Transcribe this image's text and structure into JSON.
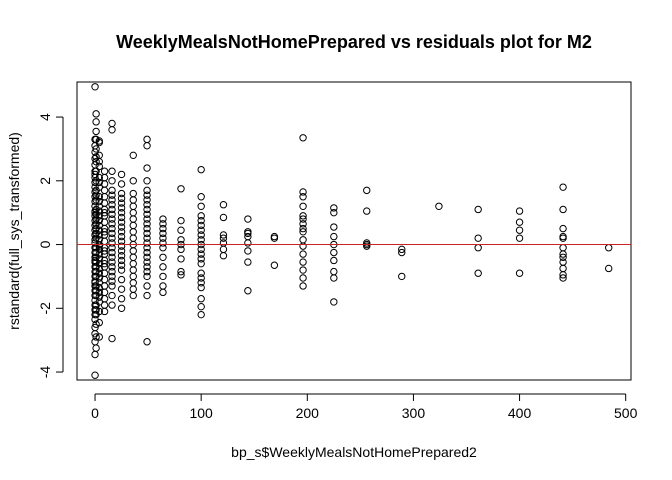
{
  "chart_data": {
    "type": "scatter",
    "title": "WeeklyMealsNotHomePrepared vs residuals plot for M2",
    "xlabel": "bp_s$WeeklyMealsNotHomePrepared2",
    "ylabel": "rstandard(full_sys_transformed)",
    "xlim": [
      -17,
      505
    ],
    "ylim": [
      -4.25,
      5.1
    ],
    "xticks": [
      0,
      100,
      200,
      300,
      400,
      500
    ],
    "yticks": [
      -4,
      -2,
      0,
      2,
      4
    ],
    "hline": {
      "y": 0,
      "color": "#cc2222"
    },
    "grid": false,
    "legend": "none",
    "series": [
      {
        "x": [
          0,
          0,
          0,
          0,
          0,
          0,
          0,
          0,
          0,
          0,
          0,
          0,
          0,
          0,
          0,
          0,
          0,
          0,
          0,
          0,
          0,
          0,
          0,
          0,
          0,
          0,
          0,
          0,
          0,
          0,
          0,
          0,
          0,
          0,
          0,
          0,
          0,
          0,
          0,
          0,
          0,
          0,
          0,
          0,
          0,
          0,
          0,
          0,
          1,
          1,
          1,
          1,
          1,
          1,
          1,
          1,
          1,
          1,
          1,
          1,
          1,
          1,
          1,
          1,
          1,
          1,
          1,
          1,
          1,
          1,
          1,
          1,
          1,
          1,
          1,
          1,
          1,
          1,
          1,
          1,
          1,
          1,
          1,
          4,
          4,
          4,
          4,
          4,
          4,
          4,
          4,
          4,
          4,
          4,
          4,
          4,
          4,
          4,
          4,
          4,
          4,
          4,
          4,
          4,
          4,
          4,
          4,
          4,
          4,
          4,
          4,
          4,
          4,
          4,
          4,
          4,
          4,
          4,
          9,
          9,
          9,
          9,
          9,
          9,
          9,
          9,
          9,
          9,
          9,
          9,
          9,
          9,
          9,
          9,
          9,
          9,
          9,
          9,
          9,
          9,
          9,
          9,
          9,
          9,
          9,
          16,
          16,
          16,
          16,
          16,
          16,
          16,
          16,
          16,
          16,
          16,
          16,
          16,
          16,
          16,
          16,
          16,
          16,
          16,
          16,
          16,
          16,
          16,
          16,
          16,
          16,
          16,
          16,
          25,
          25,
          25,
          25,
          25,
          25,
          25,
          25,
          25,
          25,
          25,
          25,
          25,
          25,
          25,
          25,
          25,
          25,
          25,
          25,
          25,
          25,
          25,
          36,
          36,
          36,
          36,
          36,
          36,
          36,
          36,
          36,
          36,
          36,
          36,
          36,
          36,
          36,
          36,
          36,
          36,
          36,
          49,
          49,
          49,
          49,
          49,
          49,
          49,
          49,
          49,
          49,
          49,
          49,
          49,
          49,
          49,
          49,
          49,
          49,
          49,
          49,
          49,
          49,
          49,
          49,
          49,
          49,
          64,
          64,
          64,
          64,
          64,
          64,
          64,
          64,
          64,
          64,
          64,
          64,
          81,
          81,
          81,
          81,
          81,
          81,
          81,
          81,
          81,
          100,
          100,
          100,
          100,
          100,
          100,
          100,
          100,
          100,
          100,
          100,
          100,
          100,
          100,
          100,
          100,
          100,
          100,
          100,
          100,
          100,
          121,
          121,
          121,
          121,
          121,
          121,
          121,
          144,
          144,
          144,
          144,
          144,
          144,
          144,
          144,
          169,
          169,
          169,
          196,
          196,
          196,
          196,
          196,
          196,
          196,
          196,
          196,
          196,
          196,
          196,
          196,
          196,
          196,
          196,
          225,
          225,
          225,
          225,
          225,
          225,
          225,
          225,
          225,
          225,
          256,
          256,
          256,
          256,
          256,
          289,
          289,
          289,
          324,
          361,
          361,
          361,
          361,
          400,
          400,
          400,
          400,
          400,
          441,
          441,
          441,
          441,
          441,
          441,
          441,
          441,
          441,
          441,
          441,
          441,
          484,
          484
        ],
        "y": [
          4.95,
          3.3,
          3.1,
          2.9,
          2.7,
          2.5,
          2.3,
          2.1,
          1.95,
          1.8,
          1.65,
          1.5,
          1.35,
          1.2,
          1.05,
          0.9,
          0.75,
          0.6,
          0.45,
          0.3,
          0.15,
          0.05,
          -0.1,
          -0.25,
          -0.4,
          -0.55,
          -0.7,
          -0.85,
          -1.0,
          -1.15,
          -1.3,
          -1.45,
          -1.6,
          -1.75,
          -1.9,
          -2.05,
          -2.2,
          -2.35,
          -2.6,
          -2.8,
          -3.05,
          -3.45,
          -4.1,
          1.0,
          0.3,
          -0.5,
          -1.2,
          2.2,
          4.1,
          3.85,
          3.3,
          3.0,
          2.6,
          2.3,
          2.0,
          1.7,
          1.4,
          1.1,
          0.8,
          0.5,
          0.2,
          -0.1,
          -0.4,
          -0.7,
          -1.0,
          -1.3,
          -1.6,
          -1.9,
          -2.2,
          -2.5,
          -2.9,
          -3.25,
          1.55,
          0.95,
          0.35,
          -0.25,
          -0.85,
          -1.45,
          -2.05,
          -0.55,
          2.75,
          3.55,
          0.65,
          3.25,
          2.8,
          2.45,
          2.1,
          1.8,
          1.5,
          1.2,
          0.9,
          0.6,
          0.3,
          0.0,
          -0.3,
          -0.6,
          -0.9,
          -1.2,
          -1.5,
          -1.8,
          -2.1,
          -2.45,
          -2.9,
          1.95,
          1.35,
          0.75,
          0.15,
          -0.45,
          -1.05,
          -1.65,
          0.45,
          -0.15,
          2.6,
          -1.35,
          1.05,
          -0.75,
          3.2,
          -0.05,
          2.3,
          1.9,
          1.5,
          1.1,
          0.7,
          0.3,
          -0.1,
          -0.5,
          -0.9,
          -1.3,
          -1.7,
          -2.1,
          1.7,
          1.3,
          0.9,
          0.5,
          0.1,
          -0.3,
          -0.7,
          -1.1,
          -1.5,
          -1.9,
          2.1,
          -0.2,
          0.4,
          -0.6,
          1.0,
          3.8,
          3.6,
          2.3,
          2.0,
          1.7,
          1.4,
          1.1,
          0.8,
          0.5,
          0.2,
          -0.1,
          -0.4,
          -0.7,
          -1.0,
          -1.3,
          -1.6,
          -1.9,
          -2.95,
          1.55,
          1.25,
          0.95,
          0.65,
          0.35,
          0.05,
          -0.25,
          -0.55,
          -0.85,
          -1.15,
          2.2,
          1.9,
          1.6,
          1.3,
          1.0,
          0.7,
          0.4,
          0.1,
          -0.2,
          -0.5,
          -0.8,
          -1.1,
          -1.4,
          -1.7,
          -2.0,
          1.45,
          1.15,
          0.85,
          0.55,
          0.25,
          -0.05,
          -0.35,
          -0.65,
          2.8,
          2.0,
          1.6,
          1.2,
          0.8,
          0.4,
          0.0,
          -0.4,
          -0.8,
          -1.2,
          -1.6,
          1.4,
          1.0,
          0.6,
          0.2,
          -0.2,
          -0.6,
          -1.0,
          -1.4,
          3.3,
          3.1,
          2.4,
          2.0,
          1.7,
          1.4,
          1.1,
          0.8,
          0.5,
          0.2,
          -0.1,
          -0.4,
          -0.7,
          -1.0,
          -1.3,
          -1.6,
          -3.05,
          1.55,
          1.25,
          0.95,
          0.65,
          0.35,
          0.05,
          -0.25,
          -0.55,
          -0.85,
          0.8,
          0.5,
          0.2,
          -0.1,
          -0.4,
          -0.7,
          -1.0,
          -1.3,
          -1.5,
          0.65,
          0.35,
          0.05,
          1.75,
          0.75,
          0.45,
          0.15,
          -0.15,
          -0.45,
          -0.85,
          -0.95,
          0.0,
          2.35,
          1.5,
          1.2,
          0.9,
          0.6,
          0.3,
          0.0,
          -0.3,
          -0.6,
          -0.9,
          -1.2,
          -1.7,
          -1.95,
          -2.2,
          0.75,
          0.45,
          0.15,
          -0.15,
          -0.45,
          -1.05,
          -1.35,
          1.25,
          0.85,
          0.3,
          0.05,
          -0.35,
          -0.15,
          0.2,
          0.8,
          0.4,
          0.25,
          0.05,
          -0.2,
          -0.55,
          -1.45,
          0.35,
          0.25,
          -0.65,
          0.2,
          3.35,
          1.65,
          1.5,
          1.2,
          0.9,
          0.65,
          0.4,
          0.15,
          -0.05,
          -0.3,
          -0.55,
          -0.8,
          -1.05,
          -1.3,
          0.8,
          0.5,
          1.15,
          1.0,
          0.55,
          0.25,
          0.0,
          -0.25,
          -0.5,
          -0.85,
          -1.05,
          -1.8,
          1.7,
          1.05,
          0.05,
          -0.05,
          0.0,
          -0.15,
          -0.25,
          -1.0,
          1.2,
          1.1,
          0.2,
          -0.1,
          -0.9,
          1.05,
          0.7,
          0.45,
          0.2,
          -0.9,
          1.8,
          1.1,
          0.5,
          0.25,
          0.2,
          -0.1,
          -0.3,
          -0.4,
          -0.55,
          -0.75,
          -0.95,
          -1.05,
          -0.1,
          -0.75
        ]
      }
    ]
  }
}
